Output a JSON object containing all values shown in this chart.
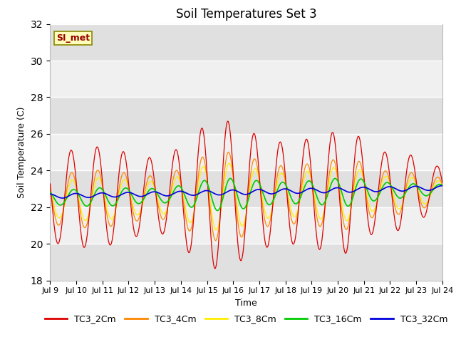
{
  "title": "Soil Temperatures Set 3",
  "xlabel": "Time",
  "ylabel": "Soil Temperature (C)",
  "ylim": [
    18,
    32
  ],
  "yticks": [
    18,
    20,
    22,
    24,
    26,
    28,
    30,
    32
  ],
  "xtick_labels": [
    "Jul 9",
    "Jul 10",
    "Jul 11",
    "Jul 12",
    "Jul 13",
    "Jul 14",
    "Jul 15",
    "Jul 16",
    "Jul 17",
    "Jul 18",
    "Jul 19",
    "Jul 20",
    "Jul 21",
    "Jul 22",
    "Jul 23",
    "Jul 24"
  ],
  "series_colors": {
    "TC3_2Cm": "#dd0000",
    "TC3_4Cm": "#ff8800",
    "TC3_8Cm": "#ffee00",
    "TC3_16Cm": "#00cc00",
    "TC3_32Cm": "#0000dd"
  },
  "annotation_text": "SI_met",
  "annotation_color": "#990000",
  "annotation_bg": "#ffffbb",
  "annotation_border": "#888800",
  "background_inner": "#f0f0f0",
  "background_stripe": "#e0e0e0",
  "background_outer": "#ffffff",
  "grid_color": "#ffffff",
  "title_fontsize": 12,
  "axis_fontsize": 9,
  "tick_fontsize": 8,
  "legend_fontsize": 9
}
